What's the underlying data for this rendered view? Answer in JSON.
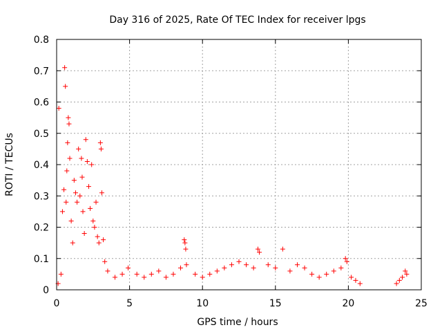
{
  "chart_data": {
    "type": "scatter",
    "title": "Day 316 of 2025, Rate Of TEC Index for receiver lpgs",
    "xlabel": "GPS time / hours",
    "ylabel": "ROTI / TECUs",
    "xlim": [
      0,
      25
    ],
    "ylim": [
      0,
      0.8
    ],
    "x_ticks": [
      0,
      5,
      10,
      15,
      20,
      25
    ],
    "y_ticks": [
      0,
      0.1,
      0.2,
      0.3,
      0.4,
      0.5,
      0.6,
      0.7,
      0.8
    ],
    "grid": true,
    "marker": "+",
    "color": "#ff0000",
    "series": [
      {
        "name": "ROTI",
        "points": [
          [
            0.1,
            0.02
          ],
          [
            0.15,
            0.58
          ],
          [
            0.3,
            0.05
          ],
          [
            0.4,
            0.25
          ],
          [
            0.5,
            0.32
          ],
          [
            0.55,
            0.71
          ],
          [
            0.6,
            0.65
          ],
          [
            0.65,
            0.28
          ],
          [
            0.7,
            0.38
          ],
          [
            0.75,
            0.47
          ],
          [
            0.8,
            0.55
          ],
          [
            0.85,
            0.53
          ],
          [
            0.9,
            0.42
          ],
          [
            1.0,
            0.22
          ],
          [
            1.1,
            0.15
          ],
          [
            1.2,
            0.35
          ],
          [
            1.3,
            0.31
          ],
          [
            1.4,
            0.28
          ],
          [
            1.5,
            0.45
          ],
          [
            1.6,
            0.3
          ],
          [
            1.7,
            0.42
          ],
          [
            1.75,
            0.36
          ],
          [
            1.8,
            0.25
          ],
          [
            1.9,
            0.18
          ],
          [
            2.0,
            0.48
          ],
          [
            2.1,
            0.41
          ],
          [
            2.2,
            0.33
          ],
          [
            2.3,
            0.26
          ],
          [
            2.4,
            0.4
          ],
          [
            2.5,
            0.22
          ],
          [
            2.6,
            0.2
          ],
          [
            2.7,
            0.28
          ],
          [
            2.8,
            0.17
          ],
          [
            2.9,
            0.15
          ],
          [
            3.0,
            0.47
          ],
          [
            3.05,
            0.45
          ],
          [
            3.1,
            0.31
          ],
          [
            3.2,
            0.16
          ],
          [
            3.3,
            0.09
          ],
          [
            3.5,
            0.06
          ],
          [
            4.0,
            0.04
          ],
          [
            4.5,
            0.05
          ],
          [
            4.9,
            0.07
          ],
          [
            5.5,
            0.05
          ],
          [
            6.0,
            0.04
          ],
          [
            6.5,
            0.05
          ],
          [
            7.0,
            0.06
          ],
          [
            7.5,
            0.04
          ],
          [
            8.0,
            0.05
          ],
          [
            8.5,
            0.07
          ],
          [
            8.75,
            0.16
          ],
          [
            8.8,
            0.15
          ],
          [
            8.85,
            0.13
          ],
          [
            8.9,
            0.08
          ],
          [
            9.5,
            0.05
          ],
          [
            10.0,
            0.04
          ],
          [
            10.5,
            0.05
          ],
          [
            11.0,
            0.06
          ],
          [
            11.5,
            0.07
          ],
          [
            12.0,
            0.08
          ],
          [
            12.5,
            0.09
          ],
          [
            13.0,
            0.08
          ],
          [
            13.5,
            0.07
          ],
          [
            13.8,
            0.13
          ],
          [
            13.9,
            0.12
          ],
          [
            14.5,
            0.08
          ],
          [
            15.0,
            0.07
          ],
          [
            15.5,
            0.13
          ],
          [
            16.0,
            0.06
          ],
          [
            16.5,
            0.08
          ],
          [
            17.0,
            0.07
          ],
          [
            17.5,
            0.05
          ],
          [
            18.0,
            0.04
          ],
          [
            18.5,
            0.05
          ],
          [
            19.0,
            0.06
          ],
          [
            19.5,
            0.07
          ],
          [
            19.8,
            0.1
          ],
          [
            19.9,
            0.09
          ],
          [
            20.2,
            0.04
          ],
          [
            20.5,
            0.03
          ],
          [
            20.8,
            0.02
          ],
          [
            23.3,
            0.02
          ],
          [
            23.5,
            0.03
          ],
          [
            23.7,
            0.04
          ],
          [
            23.9,
            0.06
          ],
          [
            24.0,
            0.05
          ]
        ]
      }
    ]
  }
}
